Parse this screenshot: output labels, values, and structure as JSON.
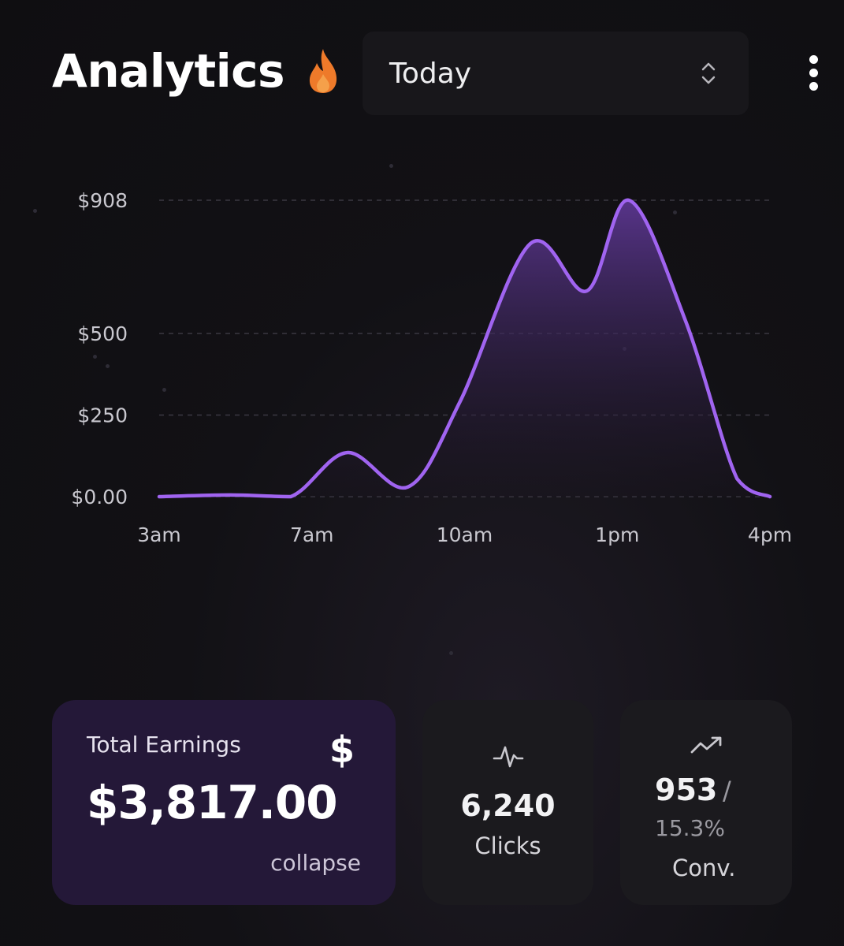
{
  "header": {
    "title": "Analytics",
    "flame_icon": "flame-icon",
    "period_select": {
      "value": "Today",
      "icon": "chevron-up-down-icon"
    },
    "menu_icon": "more-vertical-icon"
  },
  "chart_data": {
    "type": "area",
    "title": "",
    "xlabel": "",
    "ylabel": "",
    "x_ticks": [
      "3am",
      "7am",
      "10am",
      "1pm",
      "4pm"
    ],
    "y_ticks": [
      "$0.00",
      "$250",
      "$500",
      "$908"
    ],
    "y_tick_values": [
      0,
      250,
      500,
      908
    ],
    "x": [
      3,
      4.5,
      5.8,
      7,
      8.3,
      9.4,
      10.9,
      12.1,
      13,
      14.2,
      15.3,
      16
    ],
    "y": [
      0,
      5,
      0,
      135,
      30,
      290,
      775,
      630,
      908,
      540,
      55,
      0
    ],
    "xlim": [
      3,
      16
    ],
    "ylim": [
      0,
      908
    ],
    "grid": true,
    "line_color": "#a064f0",
    "fill_top_color": "#5b3690",
    "fill_bottom_color": "#1a1420"
  },
  "cards": {
    "earnings": {
      "label": "Total Earnings",
      "icon": "dollar-icon",
      "icon_glyph": "$",
      "value": "$3,817.00",
      "action": "collapse"
    },
    "clicks": {
      "icon": "activity-icon",
      "value": "6,240",
      "label": "Clicks"
    },
    "conversions": {
      "icon": "trending-up-icon",
      "value": "953",
      "separator": "/",
      "rate": "15.3%",
      "label": "Conv."
    }
  },
  "colors": {
    "accent": "#a064f0",
    "flame": "#ee7a2a",
    "earnings_card": "#241838",
    "stat_card": "#1b1a1e"
  }
}
